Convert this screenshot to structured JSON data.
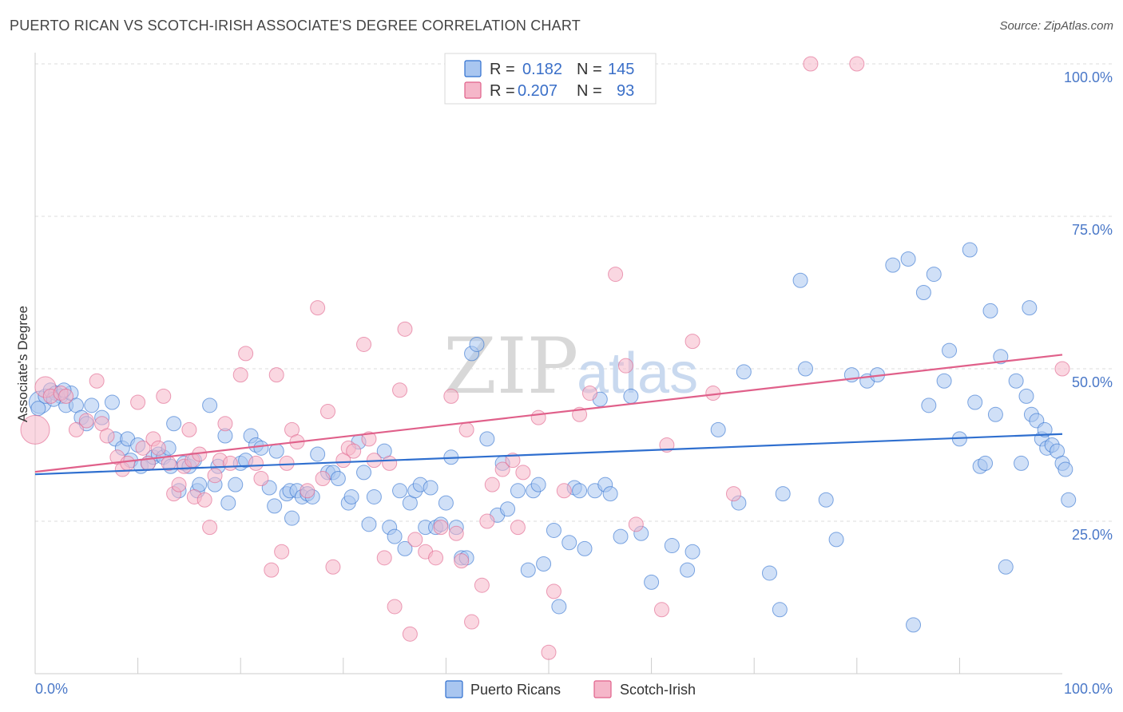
{
  "title": "PUERTO RICAN VS SCOTCH-IRISH ASSOCIATE'S DEGREE CORRELATION CHART",
  "source": "Source: ZipAtlas.com",
  "watermark": {
    "zip": "ZIP",
    "atlas": "atlas"
  },
  "colors": {
    "blue": "#2f6fcf",
    "blue_fill": "#a9c6f0",
    "pink": "#e0608a",
    "pink_fill": "#f5b6c9",
    "tick": "#4a78c8",
    "grid": "#dddddd"
  },
  "legend": {
    "r_label": "R =",
    "n_label": "N =",
    "rows": [
      {
        "r": "0.182",
        "n": "145"
      },
      {
        "r": "0.207",
        "n": "93"
      }
    ]
  },
  "chart_data": {
    "type": "scatter",
    "title": "PUERTO RICAN VS SCOTCH-IRISH ASSOCIATE'S DEGREE CORRELATION CHART",
    "xlabel": "",
    "ylabel": "Associate's Degree",
    "xlim": [
      0,
      100
    ],
    "ylim": [
      0,
      100
    ],
    "x_tick_labels": [
      "0.0%",
      "100.0%"
    ],
    "y_ticks": [
      25,
      50,
      75,
      100
    ],
    "y_tick_labels": [
      "25.0%",
      "50.0%",
      "75.0%",
      "100.0%"
    ],
    "grid": true,
    "legend_position": "top-center",
    "series": [
      {
        "name": "Puerto Ricans",
        "color": "#2f6fcf",
        "trend": {
          "x": [
            0,
            100
          ],
          "y": [
            32.7,
            39.3
          ]
        },
        "points": [
          [
            0.5,
            44.5
          ],
          [
            1.0,
            45.5
          ],
          [
            1.5,
            46.5
          ],
          [
            2.0,
            46.0
          ],
          [
            2.5,
            45.5
          ],
          [
            3.0,
            44.0
          ],
          [
            3.5,
            46.0
          ],
          [
            4.0,
            44.0
          ],
          [
            4.5,
            42.0
          ],
          [
            5.0,
            41.0
          ],
          [
            5.5,
            44.0
          ],
          [
            6.5,
            42.0
          ],
          [
            7.5,
            44.5
          ],
          [
            7.8,
            38.5
          ],
          [
            8.5,
            37.0
          ],
          [
            9.0,
            38.5
          ],
          [
            9.3,
            35.0
          ],
          [
            10.0,
            37.5
          ],
          [
            10.3,
            34.0
          ],
          [
            11.0,
            34.5
          ],
          [
            11.5,
            35.5
          ],
          [
            12.0,
            36.0
          ],
          [
            12.5,
            35.5
          ],
          [
            13.0,
            37.0
          ],
          [
            13.5,
            41.0
          ],
          [
            13.2,
            34.0
          ],
          [
            14.0,
            30.0
          ],
          [
            14.5,
            34.5
          ],
          [
            15.0,
            34.0
          ],
          [
            15.5,
            35.0
          ],
          [
            15.8,
            30.0
          ],
          [
            16.0,
            31.0
          ],
          [
            17.0,
            44.0
          ],
          [
            17.5,
            31.0
          ],
          [
            17.8,
            34.0
          ],
          [
            18.5,
            39.0
          ],
          [
            18.8,
            28.0
          ],
          [
            19.5,
            31.0
          ],
          [
            20.0,
            34.5
          ],
          [
            20.5,
            35.0
          ],
          [
            21.0,
            39.0
          ],
          [
            21.5,
            37.5
          ],
          [
            22.0,
            37.0
          ],
          [
            22.8,
            30.5
          ],
          [
            23.3,
            27.5
          ],
          [
            23.5,
            36.5
          ],
          [
            24.5,
            29.5
          ],
          [
            24.8,
            30.0
          ],
          [
            25.0,
            25.5
          ],
          [
            25.5,
            30.0
          ],
          [
            26.0,
            29.0
          ],
          [
            26.5,
            29.5
          ],
          [
            27.0,
            29.0
          ],
          [
            27.5,
            36.0
          ],
          [
            28.5,
            33.0
          ],
          [
            29.0,
            33.0
          ],
          [
            29.5,
            32.0
          ],
          [
            30.5,
            28.0
          ],
          [
            30.8,
            29.0
          ],
          [
            31.5,
            38.0
          ],
          [
            32.0,
            33.0
          ],
          [
            32.5,
            24.5
          ],
          [
            33.0,
            29.0
          ],
          [
            34.0,
            36.5
          ],
          [
            34.5,
            24.0
          ],
          [
            35.0,
            22.5
          ],
          [
            35.5,
            30.0
          ],
          [
            36.0,
            20.5
          ],
          [
            36.5,
            28.0
          ],
          [
            37.0,
            30.0
          ],
          [
            37.5,
            31.0
          ],
          [
            38.0,
            24.0
          ],
          [
            38.5,
            30.5
          ],
          [
            39.0,
            24.0
          ],
          [
            39.5,
            24.5
          ],
          [
            40.0,
            28.0
          ],
          [
            40.5,
            35.5
          ],
          [
            41.0,
            24.0
          ],
          [
            41.5,
            19.0
          ],
          [
            42.0,
            19.0
          ],
          [
            42.5,
            52.5
          ],
          [
            43.0,
            54.0
          ],
          [
            44.0,
            38.5
          ],
          [
            45.0,
            26.0
          ],
          [
            45.5,
            34.5
          ],
          [
            46.0,
            27.0
          ],
          [
            47.0,
            30.0
          ],
          [
            48.0,
            17.0
          ],
          [
            48.5,
            30.0
          ],
          [
            49.0,
            31.0
          ],
          [
            49.5,
            18.0
          ],
          [
            50.5,
            23.5
          ],
          [
            51.0,
            11.0
          ],
          [
            52.0,
            21.5
          ],
          [
            52.5,
            30.5
          ],
          [
            53.0,
            30.0
          ],
          [
            53.5,
            20.5
          ],
          [
            54.5,
            30.0
          ],
          [
            55.0,
            45.0
          ],
          [
            55.5,
            31.0
          ],
          [
            56.0,
            29.5
          ],
          [
            57.0,
            22.5
          ],
          [
            58.0,
            45.5
          ],
          [
            59.0,
            23.0
          ],
          [
            60.0,
            15.0
          ],
          [
            62.0,
            21.0
          ],
          [
            63.5,
            17.0
          ],
          [
            64.0,
            20.0
          ],
          [
            66.5,
            40.0
          ],
          [
            68.5,
            28.0
          ],
          [
            69.0,
            49.5
          ],
          [
            71.5,
            16.5
          ],
          [
            72.5,
            10.5
          ],
          [
            72.8,
            29.5
          ],
          [
            74.5,
            64.5
          ],
          [
            75.0,
            50.0
          ],
          [
            77.0,
            28.5
          ],
          [
            78.0,
            22.0
          ],
          [
            79.5,
            49.0
          ],
          [
            81.0,
            48.0
          ],
          [
            82.0,
            49.0
          ],
          [
            83.5,
            67.0
          ],
          [
            85.0,
            68.0
          ],
          [
            85.5,
            8.0
          ],
          [
            86.5,
            62.5
          ],
          [
            87.0,
            44.0
          ],
          [
            87.5,
            65.5
          ],
          [
            88.5,
            48.0
          ],
          [
            89.0,
            53.0
          ],
          [
            90.0,
            38.5
          ],
          [
            91.0,
            69.5
          ],
          [
            91.5,
            44.5
          ],
          [
            92.0,
            34.0
          ],
          [
            92.5,
            34.5
          ],
          [
            93.0,
            59.5
          ],
          [
            93.5,
            42.5
          ],
          [
            94.0,
            52.0
          ],
          [
            94.5,
            17.5
          ],
          [
            95.5,
            48.0
          ],
          [
            96.0,
            34.5
          ],
          [
            96.5,
            45.5
          ],
          [
            97.0,
            42.5
          ],
          [
            97.5,
            41.5
          ],
          [
            98.0,
            38.5
          ],
          [
            98.3,
            40.0
          ],
          [
            98.5,
            37.0
          ],
          [
            99.0,
            37.5
          ],
          [
            99.5,
            36.5
          ],
          [
            100.0,
            34.5
          ],
          [
            100.3,
            33.5
          ],
          [
            100.6,
            28.5
          ],
          [
            0.3,
            43.5
          ],
          [
            2.8,
            46.5
          ],
          [
            96.8,
            60.0
          ],
          [
            1.8,
            45.0
          ]
        ]
      },
      {
        "name": "Scotch-Irish",
        "color": "#e0608a",
        "trend": {
          "x": [
            0,
            100
          ],
          "y": [
            33.1,
            52.3
          ]
        },
        "points": [
          [
            0.0,
            40.0
          ],
          [
            1.0,
            47.0
          ],
          [
            1.5,
            45.5
          ],
          [
            2.5,
            46.0
          ],
          [
            3.0,
            45.5
          ],
          [
            4.0,
            40.0
          ],
          [
            5.0,
            41.5
          ],
          [
            6.0,
            48.0
          ],
          [
            6.5,
            41.0
          ],
          [
            7.0,
            39.0
          ],
          [
            8.0,
            35.5
          ],
          [
            8.5,
            33.5
          ],
          [
            9.0,
            34.5
          ],
          [
            10.0,
            44.5
          ],
          [
            10.5,
            37.0
          ],
          [
            11.0,
            34.5
          ],
          [
            11.5,
            38.5
          ],
          [
            12.0,
            37.0
          ],
          [
            12.5,
            45.5
          ],
          [
            13.0,
            34.5
          ],
          [
            13.5,
            29.5
          ],
          [
            14.0,
            31.0
          ],
          [
            14.5,
            34.0
          ],
          [
            15.0,
            40.0
          ],
          [
            15.3,
            35.0
          ],
          [
            15.5,
            29.0
          ],
          [
            16.0,
            36.0
          ],
          [
            16.5,
            28.5
          ],
          [
            17.0,
            24.0
          ],
          [
            17.5,
            32.5
          ],
          [
            18.0,
            35.0
          ],
          [
            18.5,
            41.0
          ],
          [
            19.0,
            34.5
          ],
          [
            20.0,
            49.0
          ],
          [
            20.5,
            52.5
          ],
          [
            21.5,
            34.5
          ],
          [
            22.0,
            32.0
          ],
          [
            23.0,
            17.0
          ],
          [
            23.5,
            49.0
          ],
          [
            24.0,
            20.0
          ],
          [
            24.5,
            34.5
          ],
          [
            25.0,
            40.0
          ],
          [
            25.5,
            38.0
          ],
          [
            26.5,
            30.0
          ],
          [
            27.5,
            60.0
          ],
          [
            28.0,
            32.0
          ],
          [
            28.5,
            43.0
          ],
          [
            29.0,
            17.5
          ],
          [
            30.0,
            35.0
          ],
          [
            30.5,
            37.0
          ],
          [
            31.0,
            36.5
          ],
          [
            32.0,
            54.0
          ],
          [
            32.5,
            38.5
          ],
          [
            33.0,
            35.0
          ],
          [
            34.0,
            19.0
          ],
          [
            34.5,
            34.5
          ],
          [
            35.0,
            11.0
          ],
          [
            35.5,
            46.5
          ],
          [
            36.0,
            56.5
          ],
          [
            36.5,
            6.5
          ],
          [
            37.0,
            22.0
          ],
          [
            38.0,
            20.0
          ],
          [
            39.0,
            19.0
          ],
          [
            39.5,
            24.0
          ],
          [
            40.5,
            45.5
          ],
          [
            41.0,
            23.0
          ],
          [
            41.5,
            18.5
          ],
          [
            42.0,
            40.0
          ],
          [
            42.5,
            8.5
          ],
          [
            43.5,
            14.5
          ],
          [
            44.0,
            25.0
          ],
          [
            44.5,
            31.0
          ],
          [
            45.5,
            33.5
          ],
          [
            46.5,
            35.0
          ],
          [
            47.0,
            24.0
          ],
          [
            47.5,
            33.0
          ],
          [
            49.0,
            42.0
          ],
          [
            50.0,
            3.5
          ],
          [
            50.5,
            13.5
          ],
          [
            51.5,
            30.0
          ],
          [
            53.0,
            42.5
          ],
          [
            54.0,
            46.0
          ],
          [
            56.5,
            65.5
          ],
          [
            57.5,
            50.5
          ],
          [
            58.5,
            24.5
          ],
          [
            61.0,
            10.5
          ],
          [
            61.5,
            37.5
          ],
          [
            64.0,
            54.5
          ],
          [
            66.0,
            46.0
          ],
          [
            68.0,
            29.5
          ],
          [
            75.5,
            100.0
          ],
          [
            80.0,
            100.0
          ],
          [
            100.0,
            50.0
          ]
        ]
      }
    ]
  },
  "bottom_legend": [
    {
      "label": "Puerto Ricans"
    },
    {
      "label": "Scotch-Irish"
    }
  ]
}
